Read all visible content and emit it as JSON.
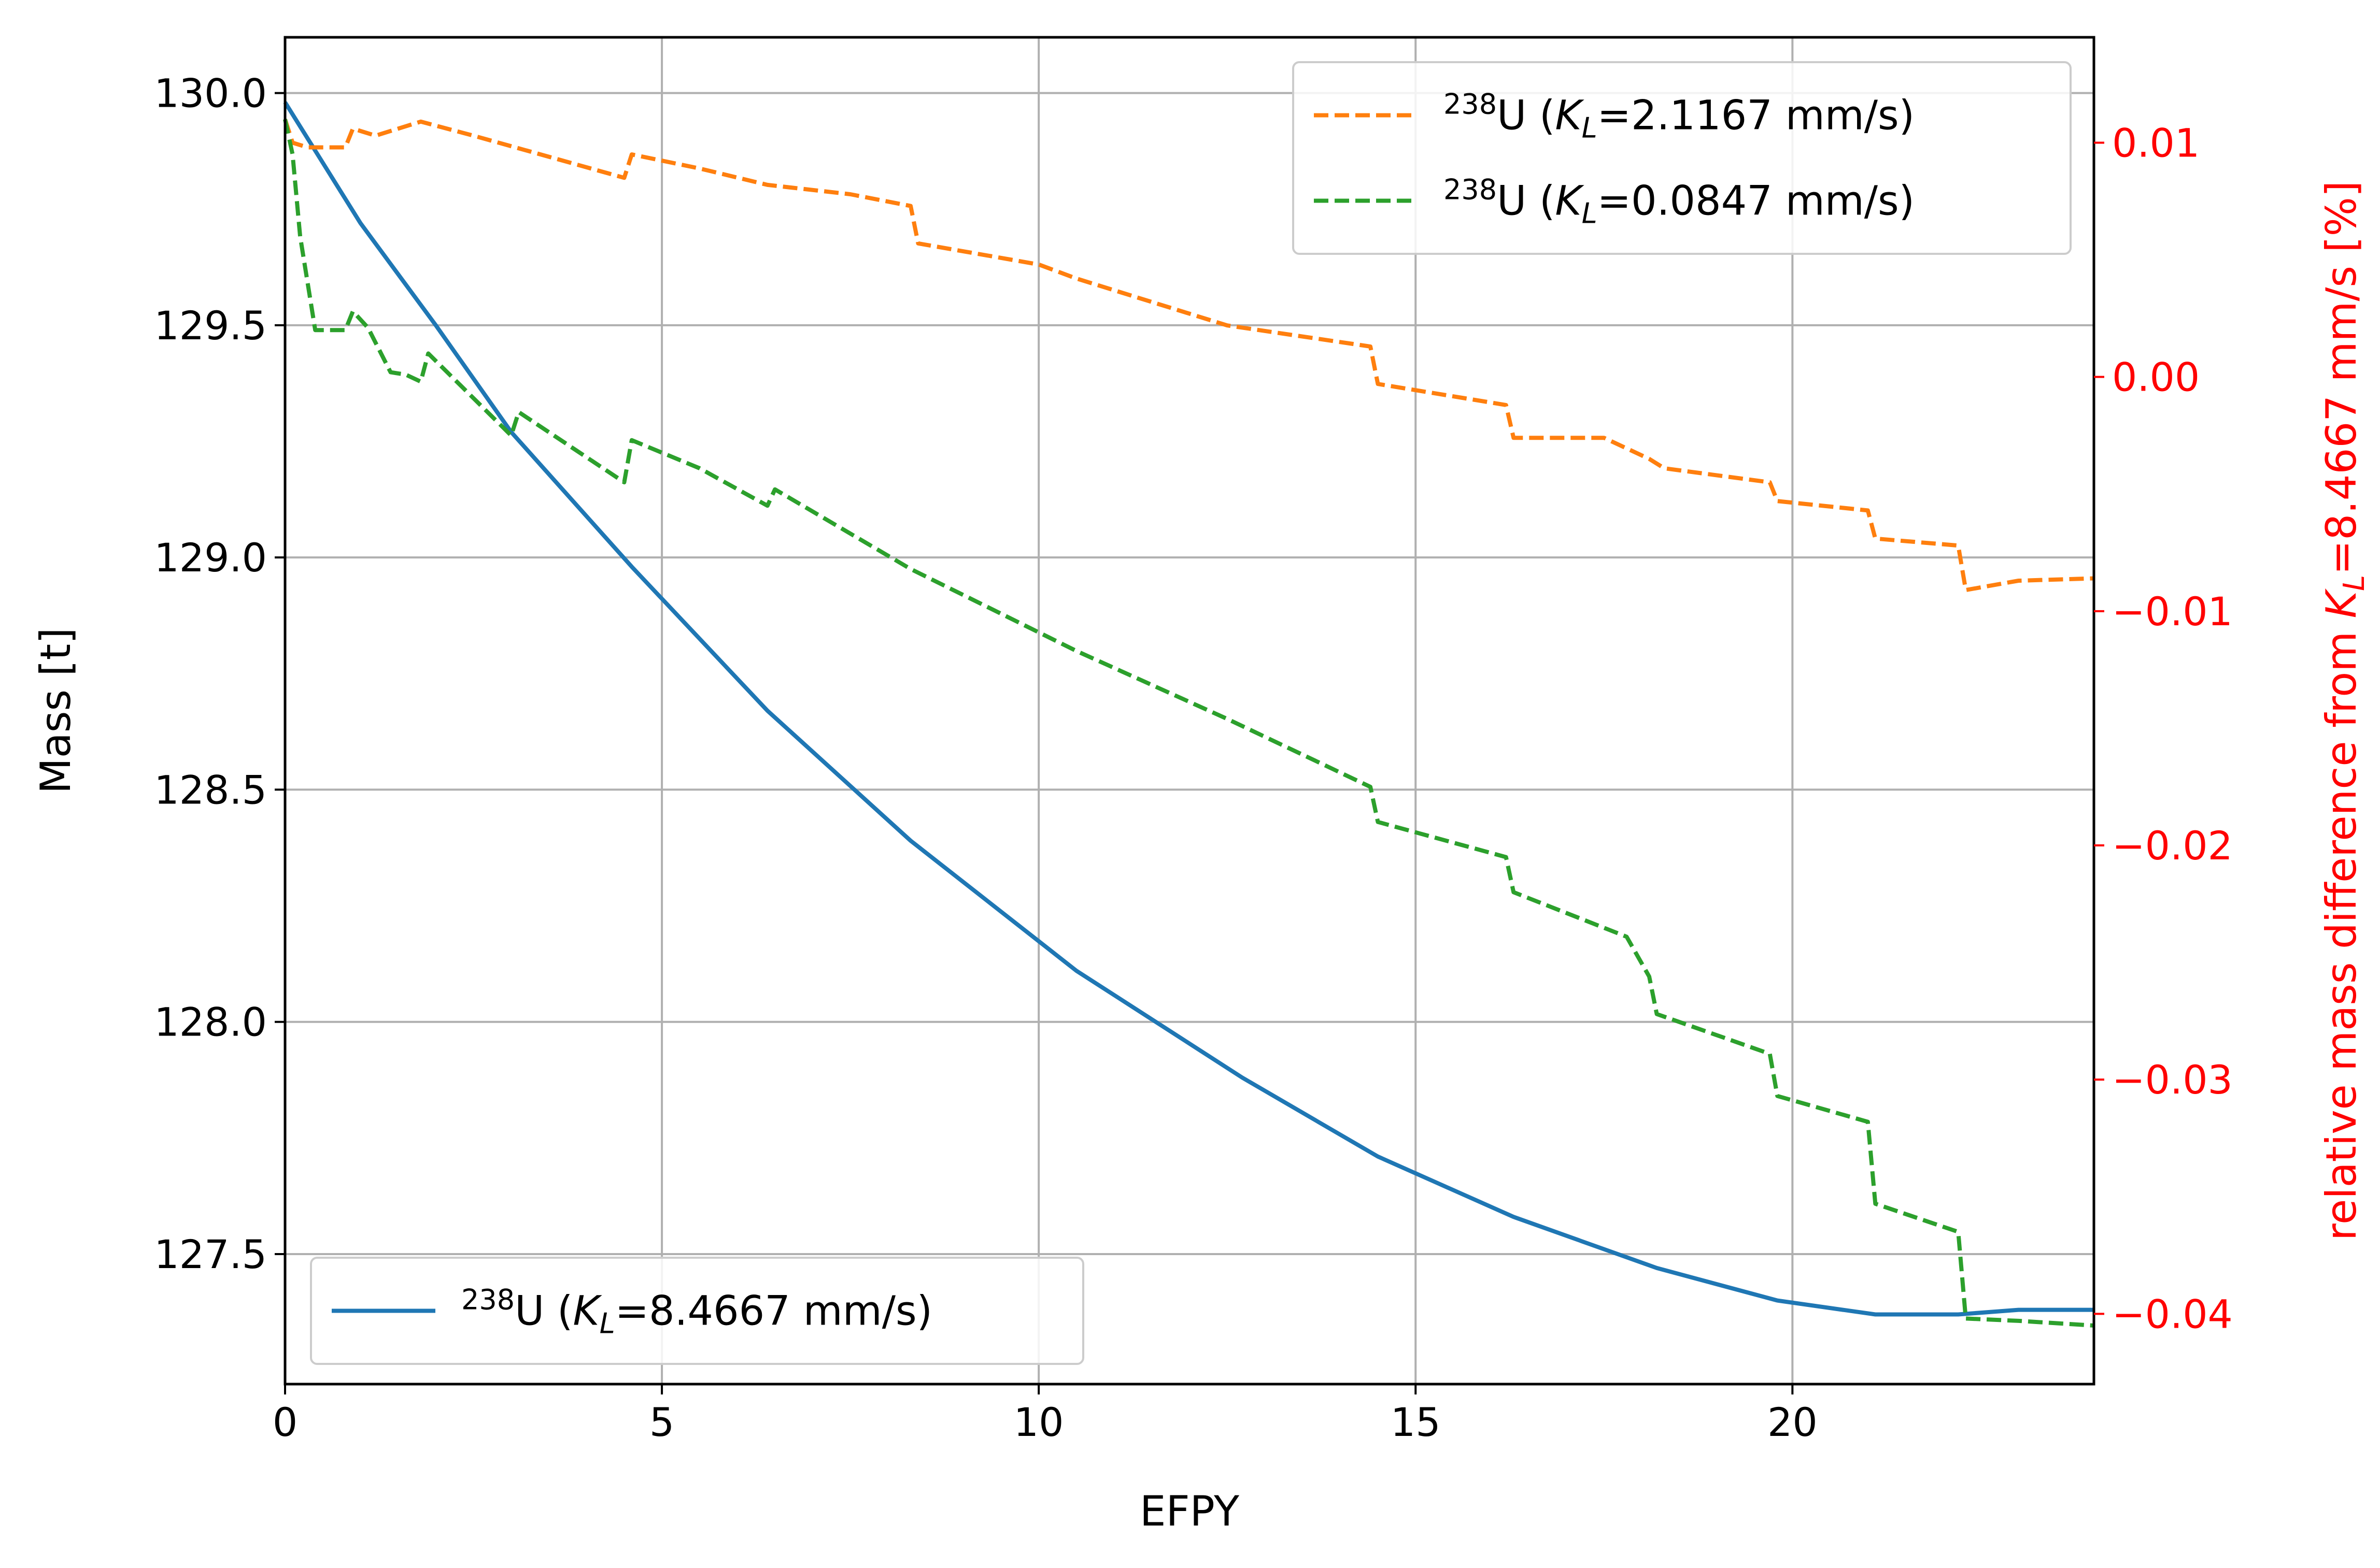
{
  "chart_data": {
    "type": "line",
    "title": "",
    "xlabel": "EFPY",
    "ylabel": "Mass [t]",
    "ylabel_right": "relative mass difference from K_L=8.4667 mm/s [%]",
    "xlim": [
      0,
      24
    ],
    "ylim": [
      127.22,
      130.12
    ],
    "ylim_right": [
      -0.043,
      0.0145
    ],
    "grid": true,
    "x_ticks": [
      "0",
      "5",
      "10",
      "15",
      "20"
    ],
    "y_ticks": [
      "127.5",
      "128.0",
      "128.5",
      "129.0",
      "129.5",
      "130.0"
    ],
    "y_right_ticks": [
      "−0.04",
      "−0.03",
      "−0.02",
      "−0.01",
      "0.00",
      "0.01"
    ],
    "right_axis_color": "#ff0000",
    "series": [
      {
        "name": "238U (K_L=8.4667 mm/s)",
        "label_sup": "238",
        "label_pre": "U (",
        "label_k": "K",
        "label_sub": "L",
        "label_post": "=8.4667 mm/s)",
        "axis": "left",
        "color": "#1f77b4",
        "style": "solid",
        "legend_position": "lower-left",
        "x": [
          0,
          1,
          2,
          3,
          4.6,
          6.4,
          8.3,
          10.5,
          12.7,
          14.5,
          16.3,
          18.2,
          19.8,
          21.1,
          22.2,
          23,
          24
        ],
        "y": [
          129.98,
          129.72,
          129.5,
          129.27,
          128.98,
          128.67,
          128.39,
          128.11,
          127.88,
          127.71,
          127.58,
          127.47,
          127.4,
          127.37,
          127.37,
          127.38,
          127.38
        ]
      },
      {
        "name": "238U (K_L=2.1167 mm/s)",
        "label_sup": "238",
        "label_pre": "U (",
        "label_k": "K",
        "label_sub": "L",
        "label_post": "=2.1167 mm/s)",
        "axis": "right",
        "color": "#ff7f0e",
        "style": "dashed",
        "legend_position": "upper-right",
        "x": [
          0,
          0.1,
          0.3,
          0.8,
          0.9,
          1.2,
          1.8,
          2.5,
          3.5,
          4.5,
          4.6,
          5.5,
          6.4,
          7.5,
          8.3,
          8.4,
          10,
          10.5,
          12.5,
          14.4,
          14.5,
          16.2,
          16.3,
          17.5,
          18.1,
          18.3,
          19.7,
          19.8,
          21,
          21.1,
          22.2,
          22.3,
          23,
          24
        ],
        "y": [
          0.011,
          0.01,
          0.0098,
          0.0098,
          0.0106,
          0.0103,
          0.0109,
          0.0103,
          0.0094,
          0.0085,
          0.0095,
          0.0089,
          0.0082,
          0.0078,
          0.0073,
          0.0057,
          0.0048,
          0.0042,
          0.0022,
          0.0013,
          -0.0003,
          -0.0012,
          -0.0026,
          -0.0026,
          -0.0035,
          -0.0039,
          -0.0045,
          -0.0053,
          -0.0057,
          -0.0069,
          -0.0072,
          -0.0091,
          -0.0087,
          -0.0086
        ]
      },
      {
        "name": "238U (K_L=0.0847 mm/s)",
        "label_sup": "238",
        "label_pre": "U (",
        "label_k": "K",
        "label_sub": "L",
        "label_post": "=0.0847 mm/s)",
        "axis": "right",
        "color": "#2ca02c",
        "style": "dashed",
        "legend_position": "upper-right",
        "x": [
          0,
          0.1,
          0.2,
          0.4,
          0.8,
          0.9,
          1.1,
          1.4,
          1.6,
          1.8,
          1.9,
          3,
          3.1,
          4.5,
          4.6,
          5.5,
          6.4,
          6.5,
          8.3,
          10.5,
          12.5,
          14.4,
          14.5,
          16.2,
          16.3,
          17.8,
          18.1,
          18.2,
          19.7,
          19.8,
          21,
          21.1,
          22.2,
          22.3,
          23,
          24
        ],
        "y": [
          0.011,
          0.0095,
          0.006,
          0.002,
          0.002,
          0.0028,
          0.0021,
          0.0002,
          0.0001,
          -0.0002,
          0.001,
          -0.0025,
          -0.0015,
          -0.0045,
          -0.0027,
          -0.0039,
          -0.0055,
          -0.0048,
          -0.0082,
          -0.0117,
          -0.0146,
          -0.0175,
          -0.019,
          -0.0205,
          -0.022,
          -0.0239,
          -0.0256,
          -0.0272,
          -0.0289,
          -0.0307,
          -0.0318,
          -0.0353,
          -0.0365,
          -0.0402,
          -0.0403,
          -0.0405
        ]
      }
    ]
  }
}
